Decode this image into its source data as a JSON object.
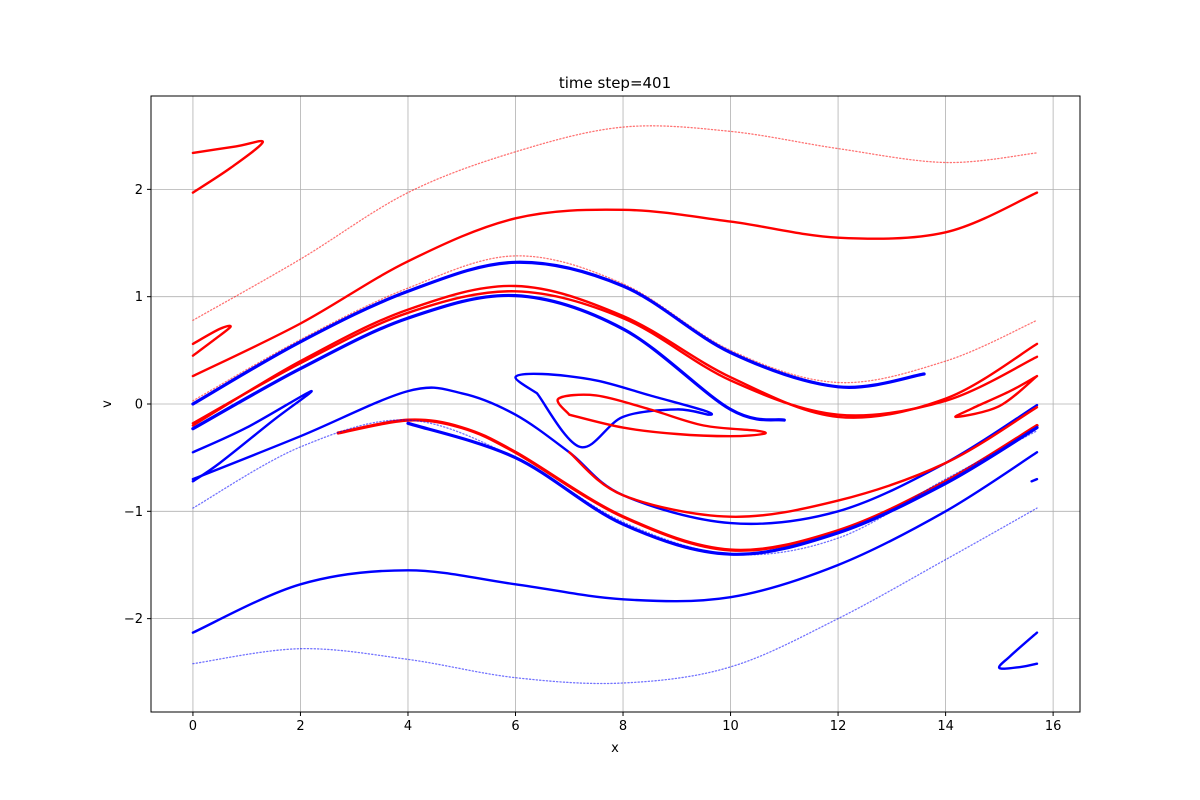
{
  "chart_data": {
    "type": "scatter",
    "title": "time step=401",
    "xlabel": "x",
    "ylabel": "v",
    "xlim": [
      -0.78,
      16.5
    ],
    "ylim": [
      -2.87,
      2.87
    ],
    "grid": true,
    "legend": "none",
    "xticks": [
      {
        "value": 0,
        "label": "0"
      },
      {
        "value": 2,
        "label": "2"
      },
      {
        "value": 4,
        "label": "4"
      },
      {
        "value": 6,
        "label": "6"
      },
      {
        "value": 8,
        "label": "8"
      },
      {
        "value": 10,
        "label": "10"
      },
      {
        "value": 12,
        "label": "12"
      },
      {
        "value": 14,
        "label": "14"
      },
      {
        "value": 16,
        "label": "16"
      }
    ],
    "yticks": [
      {
        "value": -2,
        "label": "−2"
      },
      {
        "value": -1,
        "label": "−1"
      },
      {
        "value": 0,
        "label": "0"
      },
      {
        "value": 1,
        "label": "1"
      },
      {
        "value": 2,
        "label": "2"
      }
    ],
    "colors": {
      "red": "#ff0000",
      "blue": "#0000ff",
      "grid": "#b0b0b0"
    },
    "series": [
      {
        "color": "#ff0000",
        "style": "sparse",
        "points": [
          [
            0,
            0.78
          ],
          [
            2,
            1.35
          ],
          [
            4,
            1.97
          ],
          [
            6,
            2.35
          ],
          [
            8,
            2.58
          ],
          [
            10,
            2.54
          ],
          [
            12,
            2.38
          ],
          [
            14,
            2.25
          ],
          [
            15.7,
            2.34
          ]
        ]
      },
      {
        "color": "#ff0000",
        "style": "solid",
        "points": [
          [
            0,
            2.34
          ],
          [
            0.8,
            2.4
          ],
          [
            1.3,
            2.44
          ],
          [
            0.7,
            2.2
          ],
          [
            0,
            1.97
          ]
        ]
      },
      {
        "color": "#ff0000",
        "style": "solid",
        "points": [
          [
            0,
            0.26
          ],
          [
            2,
            0.75
          ],
          [
            4,
            1.33
          ],
          [
            6,
            1.73
          ],
          [
            8,
            1.81
          ],
          [
            10,
            1.7
          ],
          [
            12,
            1.55
          ],
          [
            14,
            1.6
          ],
          [
            15.7,
            1.97
          ]
        ]
      },
      {
        "color": "#ff0000",
        "style": "solid",
        "points": [
          [
            0,
            0.56
          ],
          [
            0.5,
            0.7
          ],
          [
            0.7,
            0.72
          ],
          [
            0.4,
            0.6
          ],
          [
            0,
            0.45
          ]
        ]
      },
      {
        "color": "#ff0000",
        "style": "sparse",
        "points": [
          [
            0,
            0.03
          ],
          [
            2,
            0.6
          ],
          [
            4,
            1.08
          ],
          [
            6,
            1.38
          ],
          [
            8,
            1.12
          ],
          [
            10,
            0.5
          ],
          [
            12,
            0.2
          ],
          [
            14,
            0.4
          ],
          [
            15.7,
            0.78
          ]
        ]
      },
      {
        "color": "#0000ff",
        "style": "band",
        "points": [
          [
            0,
            0.0
          ],
          [
            2,
            0.58
          ],
          [
            4,
            1.05
          ],
          [
            6,
            1.32
          ],
          [
            8,
            1.1
          ],
          [
            10,
            0.48
          ],
          [
            12,
            0.16
          ],
          [
            13.6,
            0.28
          ]
        ]
      },
      {
        "color": "#ff0000",
        "style": "solid",
        "points": [
          [
            0,
            -0.2
          ],
          [
            2,
            0.4
          ],
          [
            4,
            0.88
          ],
          [
            6,
            1.1
          ],
          [
            8,
            0.82
          ],
          [
            10,
            0.25
          ],
          [
            12,
            -0.12
          ],
          [
            14,
            0.05
          ],
          [
            15.7,
            0.56
          ]
        ]
      },
      {
        "color": "#ff0000",
        "style": "solid",
        "points": [
          [
            0,
            -0.18
          ],
          [
            2,
            0.38
          ],
          [
            4,
            0.85
          ],
          [
            6,
            1.05
          ],
          [
            8,
            0.8
          ],
          [
            10,
            0.22
          ],
          [
            12,
            -0.1
          ],
          [
            14,
            0.03
          ],
          [
            15.7,
            0.44
          ]
        ]
      },
      {
        "color": "#0000ff",
        "style": "band",
        "points": [
          [
            0,
            -0.23
          ],
          [
            2,
            0.33
          ],
          [
            4,
            0.8
          ],
          [
            6,
            1.01
          ],
          [
            8,
            0.7
          ],
          [
            10,
            -0.05
          ],
          [
            11,
            -0.15
          ]
        ]
      },
      {
        "color": "#0000ff",
        "style": "solid",
        "points": [
          [
            0,
            -0.45
          ],
          [
            1,
            -0.22
          ],
          [
            2.2,
            0.12
          ],
          [
            1.5,
            -0.15
          ],
          [
            0.5,
            -0.55
          ],
          [
            0,
            -0.72
          ]
        ]
      },
      {
        "color": "#0000ff",
        "style": "solid",
        "points": [
          [
            0,
            -0.7
          ],
          [
            2,
            -0.3
          ],
          [
            4,
            0.12
          ],
          [
            5,
            0.1
          ],
          [
            6,
            -0.1
          ],
          [
            7,
            -0.45
          ],
          [
            8,
            -0.85
          ],
          [
            10,
            -1.11
          ],
          [
            12,
            -1.0
          ],
          [
            14,
            -0.55
          ],
          [
            15.7,
            -0.01
          ]
        ]
      },
      {
        "color": "#0000ff",
        "style": "solid",
        "points": [
          [
            6.4,
            0.1
          ],
          [
            6.0,
            0.25
          ],
          [
            6.5,
            0.28
          ],
          [
            7.5,
            0.22
          ],
          [
            8.5,
            0.08
          ],
          [
            9.5,
            -0.06
          ],
          [
            9.6,
            -0.1
          ],
          [
            9.0,
            -0.05
          ],
          [
            8.0,
            -0.12
          ],
          [
            7.2,
            -0.4
          ],
          [
            6.4,
            0.1
          ]
        ]
      },
      {
        "color": "#ff0000",
        "style": "solid",
        "points": [
          [
            7.0,
            -0.1
          ],
          [
            6.8,
            0.05
          ],
          [
            7.5,
            0.08
          ],
          [
            8.5,
            -0.05
          ],
          [
            9.5,
            -0.2
          ],
          [
            10.5,
            -0.25
          ],
          [
            10.6,
            -0.28
          ],
          [
            10.0,
            -0.3
          ],
          [
            9.0,
            -0.28
          ],
          [
            8.0,
            -0.22
          ],
          [
            7.0,
            -0.1
          ]
        ]
      },
      {
        "color": "#ff0000",
        "style": "solid",
        "points": [
          [
            7.0,
            -0.45
          ],
          [
            8,
            -0.85
          ],
          [
            10,
            -1.05
          ],
          [
            12,
            -0.9
          ],
          [
            14,
            -0.55
          ],
          [
            15.7,
            -0.03
          ]
        ]
      },
      {
        "color": "#ff0000",
        "style": "band",
        "points": [
          [
            2.7,
            -0.27
          ],
          [
            4,
            -0.15
          ],
          [
            5,
            -0.22
          ],
          [
            6,
            -0.45
          ],
          [
            8,
            -1.05
          ],
          [
            10,
            -1.36
          ],
          [
            12,
            -1.18
          ],
          [
            14,
            -0.72
          ],
          [
            15.7,
            -0.2
          ]
        ]
      },
      {
        "color": "#0000ff",
        "style": "band",
        "points": [
          [
            4,
            -0.18
          ],
          [
            6,
            -0.5
          ],
          [
            8,
            -1.12
          ],
          [
            10,
            -1.4
          ],
          [
            12,
            -1.2
          ],
          [
            14,
            -0.74
          ],
          [
            15.7,
            -0.22
          ]
        ]
      },
      {
        "color": "#0000ff",
        "style": "sparse",
        "points": [
          [
            0,
            -0.97
          ],
          [
            2,
            -0.4
          ],
          [
            4,
            -0.15
          ],
          [
            6,
            -0.5
          ],
          [
            8,
            -1.1
          ],
          [
            10,
            -1.4
          ],
          [
            12,
            -1.25
          ],
          [
            14,
            -0.7
          ],
          [
            15.7,
            -0.25
          ]
        ]
      },
      {
        "color": "#ff0000",
        "style": "solid",
        "points": [
          [
            15.7,
            0.26
          ],
          [
            15,
            -0.02
          ],
          [
            14.2,
            -0.12
          ],
          [
            14.5,
            -0.04
          ],
          [
            15.2,
            0.12
          ],
          [
            15.7,
            0.26
          ]
        ]
      },
      {
        "color": "#0000ff",
        "style": "solid",
        "points": [
          [
            0,
            -2.13
          ],
          [
            2,
            -1.68
          ],
          [
            4,
            -1.55
          ],
          [
            6,
            -1.68
          ],
          [
            8,
            -1.82
          ],
          [
            10,
            -1.8
          ],
          [
            12,
            -1.5
          ],
          [
            14,
            -1.0
          ],
          [
            15.7,
            -0.45
          ]
        ]
      },
      {
        "color": "#0000ff",
        "style": "solid",
        "points": [
          [
            15.7,
            -0.7
          ],
          [
            15.6,
            -0.72
          ]
        ]
      },
      {
        "color": "#0000ff",
        "style": "sparse",
        "points": [
          [
            0,
            -2.42
          ],
          [
            2,
            -2.28
          ],
          [
            4,
            -2.38
          ],
          [
            6,
            -2.55
          ],
          [
            8,
            -2.6
          ],
          [
            10,
            -2.45
          ],
          [
            12,
            -2.0
          ],
          [
            14,
            -1.45
          ],
          [
            15.7,
            -0.97
          ]
        ]
      },
      {
        "color": "#0000ff",
        "style": "solid",
        "points": [
          [
            15.7,
            -2.13
          ],
          [
            15.2,
            -2.35
          ],
          [
            15.0,
            -2.46
          ],
          [
            15.4,
            -2.45
          ],
          [
            15.7,
            -2.42
          ]
        ]
      }
    ]
  }
}
